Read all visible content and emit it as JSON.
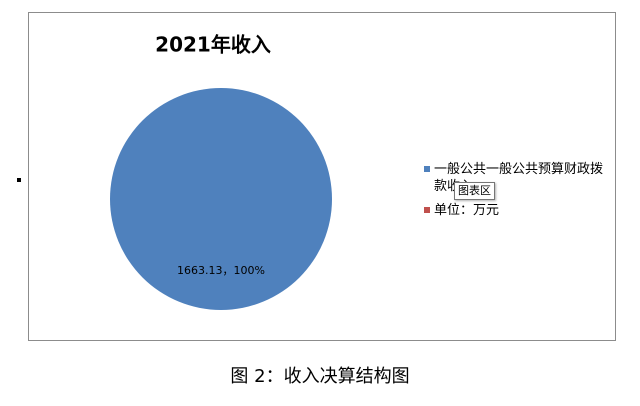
{
  "chart_data": {
    "type": "pie",
    "title": "2021年收入",
    "categories": [
      "一般公共一般公共预算财政拨款收入",
      "单位：万元"
    ],
    "values": [
      1663.13,
      0
    ],
    "value_labels": [
      "1663.13，100%",
      null
    ],
    "colors": [
      "#4f81bd",
      "#c0504d"
    ],
    "legend": "right"
  },
  "tooltip": "图表区",
  "caption": "图 2：收入决算结构图"
}
